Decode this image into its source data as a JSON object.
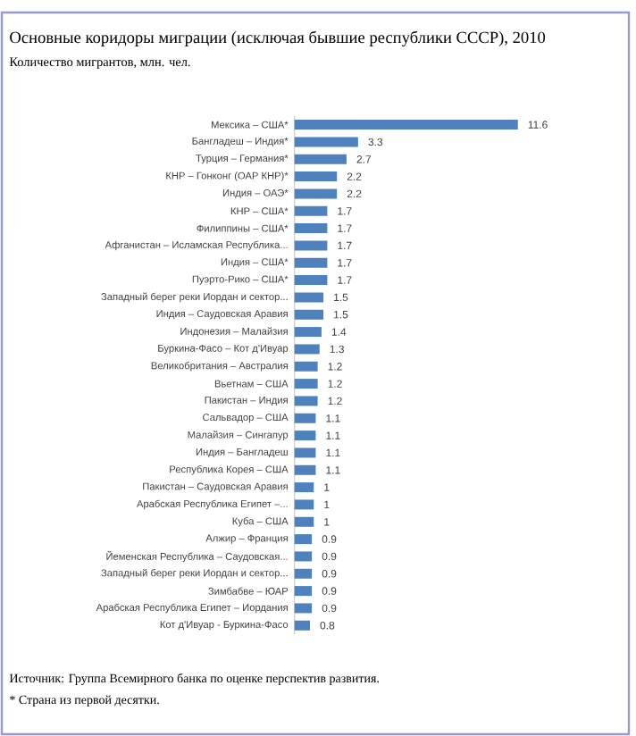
{
  "chart_data": {
    "type": "bar",
    "orientation": "horizontal",
    "title": "Основные коридоры миграции (исключая бывшие республики СССР), 2010",
    "subtitle": "Количество мигрантов, млн. чел.",
    "categories": [
      "Мексика – США*",
      "Бангладеш – Индия*",
      "Турция – Германия*",
      "КНР – Гонконг (ОАР КНР)*",
      "Индия – ОАЭ*",
      "КНР – США*",
      "Филиппины – США*",
      "Афганистан – Исламская Республика...",
      "Индия – США*",
      "Пуэрто-Рико – США*",
      "Западный берег реки Иордан и сектор...",
      "Индия – Саудовская  Аравия",
      "Индонезия – Малайзия",
      "Буркина-Фасо – Кот д'Ивуар",
      "Великобритания – Австралия",
      "Вьетнам – США",
      "Пакистан – Индия",
      "Сальвадор – США",
      "Малайзия – Сингапур",
      "Индия – Бангладеш",
      "Республика Корея – США",
      "Пакистан – Саудовская  Аравия",
      "Арабская Республика Египет –...",
      "Куба – США",
      "Алжир – Франция",
      "Йеменская Республика – Саудовская...",
      "Западный берег реки Иордан и сектор...",
      "Зимбабве – ЮАР",
      "Арабская Республика Египет – Иордания",
      "Кот д'Ивуар  - Буркина-Фасо"
    ],
    "values": [
      11.6,
      3.3,
      2.7,
      2.2,
      2.2,
      1.7,
      1.7,
      1.7,
      1.7,
      1.7,
      1.5,
      1.5,
      1.4,
      1.3,
      1.2,
      1.2,
      1.2,
      1.1,
      1.1,
      1.1,
      1.1,
      1,
      1,
      1,
      0.9,
      0.9,
      0.9,
      0.9,
      0.9,
      0.8
    ],
    "color": "#4f81bd",
    "data_labels": true,
    "annotations": [
      "Источник: Группа Всемирного банка по оценке перспектив развития.",
      "* Страна из первой десятки."
    ]
  }
}
